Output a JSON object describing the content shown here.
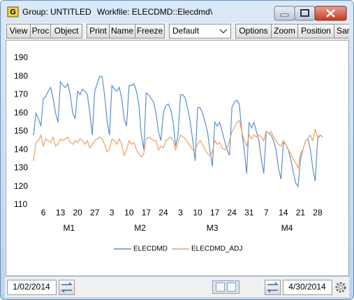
{
  "window": {
    "icon": "G",
    "title": "Group: UNTITLED",
    "workfile": "Workfile: ELECDMD::Elecdmd\\"
  },
  "toolbar": [
    "View",
    "Proc",
    "Object",
    "Print",
    "Name",
    "Freeze",
    "Default",
    "Options",
    "Zoom",
    "Position",
    "Sar"
  ],
  "status": {
    "start": "1/02/2014",
    "end": "4/30/2014"
  },
  "chart_data": {
    "type": "line",
    "categories": [
      null,
      null,
      null,
      null,
      "6",
      null,
      null,
      null,
      null,
      null,
      null,
      "13",
      null,
      null,
      null,
      null,
      null,
      null,
      "20",
      null,
      null,
      null,
      null,
      null,
      null,
      "27",
      null,
      null,
      null,
      null,
      null,
      null,
      "3",
      null,
      null,
      null,
      null,
      null,
      null,
      "10",
      null,
      null,
      null,
      null,
      null,
      null,
      "17",
      null,
      null,
      null,
      null,
      null,
      null,
      "24",
      null,
      null,
      null,
      null,
      null,
      null,
      "3",
      null,
      null,
      null,
      null,
      null,
      null,
      "10",
      null,
      null,
      null,
      null,
      null,
      null,
      "17",
      null,
      null,
      null,
      null,
      null,
      null,
      "24",
      null,
      null,
      null,
      null,
      null,
      null,
      "31",
      null,
      null,
      null,
      null,
      null,
      null,
      "7",
      null,
      null,
      null,
      null,
      null,
      null,
      "14",
      null,
      null,
      null,
      null,
      null,
      null,
      "21",
      null,
      null,
      null,
      null,
      null,
      null,
      "28",
      null,
      null
    ],
    "periods": [
      {
        "label": "M1",
        "count": 30
      },
      {
        "label": "M2",
        "count": 28
      },
      {
        "label": "M3",
        "count": 31
      },
      {
        "label": "M4",
        "count": 30
      }
    ],
    "series": [
      {
        "name": "ELECDMD",
        "color": "#5a8fd0",
        "values": [
          148,
          160,
          157,
          153,
          168,
          169,
          172,
          174,
          168,
          160,
          155,
          177,
          175,
          174,
          176,
          170,
          160,
          157,
          172,
          170,
          173,
          172,
          170,
          160,
          148,
          172,
          176,
          180,
          180,
          170,
          156,
          148,
          175,
          173,
          172,
          174,
          168,
          157,
          153,
          175,
          175,
          176,
          172,
          165,
          148,
          140,
          171,
          170,
          168,
          166,
          160,
          150,
          145,
          160,
          164,
          165,
          162,
          155,
          142,
          148,
          170,
          170,
          168,
          162,
          155,
          145,
          134,
          163,
          163,
          160,
          155,
          150,
          140,
          131,
          155,
          153,
          155,
          150,
          145,
          140,
          137,
          163,
          166,
          167,
          165,
          150,
          140,
          127,
          155,
          152,
          155,
          150,
          145,
          135,
          127,
          150,
          149,
          148,
          145,
          140,
          130,
          124,
          144,
          143,
          140,
          135,
          128,
          122,
          120,
          135,
          140,
          145,
          146,
          140,
          130,
          123,
          146,
          148,
          147
        ]
      },
      {
        "name": "ELECDMD_ADJ",
        "color": "#f0a060",
        "values": [
          134,
          144,
          145,
          148,
          142,
          146,
          145,
          144,
          147,
          142,
          143,
          146,
          145,
          146,
          147,
          144,
          143,
          145,
          144,
          146,
          145,
          143,
          145,
          141,
          143,
          145,
          146,
          147,
          146,
          143,
          139,
          140,
          146,
          145,
          143,
          146,
          143,
          137,
          140,
          145,
          143,
          144,
          140,
          138,
          136,
          138,
          146,
          147,
          146,
          145,
          145,
          140,
          142,
          141,
          145,
          146,
          147,
          145,
          140,
          144,
          148,
          147,
          146,
          144,
          142,
          140,
          140,
          143,
          145,
          143,
          140,
          138,
          137,
          139,
          145,
          143,
          144,
          141,
          140,
          141,
          145,
          150,
          152,
          155,
          156,
          150,
          145,
          142,
          148,
          146,
          148,
          147,
          148,
          147,
          145,
          150,
          149,
          150,
          147,
          145,
          143,
          142,
          145,
          143,
          140,
          138,
          135,
          133,
          130,
          138,
          140,
          145,
          146,
          148,
          145,
          151,
          147,
          148,
          147
        ]
      }
    ],
    "ylim": [
      110,
      190
    ],
    "yticks": [
      110,
      120,
      130,
      140,
      150,
      160,
      170,
      180,
      190
    ],
    "grid": false,
    "legend": "bottom"
  }
}
